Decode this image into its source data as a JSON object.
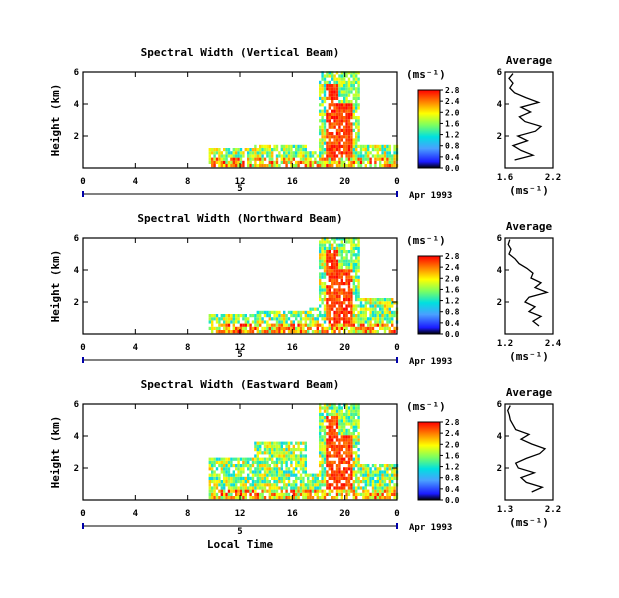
{
  "figure": {
    "local_time_label": "Local Time",
    "date_label": "Apr 1993",
    "day_label": "5",
    "average_title": "Average",
    "units_label": "(ms⁻¹)",
    "ylabel": "Height (km)"
  },
  "chart_data": [
    {
      "type": "heatmap",
      "title": "Spectral Width (Vertical Beam)",
      "xlabel": "Local Time",
      "ylabel": "Height (km)",
      "x_ticks": [
        "0",
        "4",
        "8",
        "12",
        "16",
        "20",
        "0"
      ],
      "xlim": [
        0,
        24
      ],
      "y_ticks": [
        "2",
        "4",
        "6"
      ],
      "ylim": [
        0,
        6
      ],
      "colorbar_label": "(ms⁻¹)",
      "colorbar_ticks": [
        "0.0",
        "0.4",
        "0.8",
        "1.2",
        "1.6",
        "2.0",
        "2.4",
        "2.8"
      ],
      "colorbar_range": [
        0,
        2.8
      ],
      "profile": {
        "title": "Average",
        "xlabel": "(ms⁻¹)",
        "x_ticks": [
          "1.6",
          "2.2"
        ],
        "xlim": [
          1.6,
          2.2
        ],
        "y_ticks": [
          "2",
          "4",
          "6"
        ],
        "heights": [
          0.5,
          0.8,
          1.1,
          1.4,
          1.7,
          2.0,
          2.3,
          2.6,
          2.9,
          3.2,
          3.5,
          3.8,
          4.1,
          4.4,
          4.7,
          5.0,
          5.3,
          5.6,
          5.9
        ],
        "values": [
          1.72,
          1.95,
          1.8,
          1.7,
          1.88,
          1.76,
          1.98,
          2.05,
          1.85,
          1.78,
          1.92,
          1.8,
          2.02,
          1.86,
          1.72,
          1.66,
          1.7,
          1.65,
          1.7
        ]
      }
    },
    {
      "type": "heatmap",
      "title": "Spectral Width (Northward Beam)",
      "xlabel": "Local Time",
      "ylabel": "Height (km)",
      "x_ticks": [
        "0",
        "4",
        "8",
        "12",
        "16",
        "20",
        "0"
      ],
      "xlim": [
        0,
        24
      ],
      "y_ticks": [
        "2",
        "4",
        "6"
      ],
      "ylim": [
        0,
        6
      ],
      "colorbar_label": "(ms⁻¹)",
      "colorbar_ticks": [
        "0.0",
        "0.4",
        "0.8",
        "1.2",
        "1.6",
        "2.0",
        "2.4",
        "2.8"
      ],
      "colorbar_range": [
        0,
        2.8
      ],
      "profile": {
        "title": "Average",
        "xlabel": "(ms⁻¹)",
        "x_ticks": [
          "1.2",
          "2.4"
        ],
        "xlim": [
          1.2,
          2.4
        ],
        "y_ticks": [
          "2",
          "4",
          "6"
        ],
        "heights": [
          0.5,
          0.8,
          1.1,
          1.4,
          1.7,
          2.0,
          2.3,
          2.6,
          2.9,
          3.2,
          3.5,
          3.8,
          4.1,
          4.4,
          4.7,
          5.0,
          5.3,
          5.6,
          5.9
        ],
        "values": [
          2.05,
          1.9,
          2.1,
          1.8,
          1.95,
          1.7,
          1.8,
          2.25,
          1.95,
          2.1,
          1.85,
          1.9,
          1.75,
          1.55,
          1.45,
          1.3,
          1.35,
          1.28,
          1.32
        ]
      }
    },
    {
      "type": "heatmap",
      "title": "Spectral Width (Eastward Beam)",
      "xlabel": "Local Time",
      "ylabel": "Height (km)",
      "x_ticks": [
        "0",
        "4",
        "8",
        "12",
        "16",
        "20",
        "0"
      ],
      "xlim": [
        0,
        24
      ],
      "y_ticks": [
        "2",
        "4",
        "6"
      ],
      "ylim": [
        0,
        6
      ],
      "colorbar_label": "(ms⁻¹)",
      "colorbar_ticks": [
        "0.0",
        "0.4",
        "0.8",
        "1.2",
        "1.6",
        "2.0",
        "2.4",
        "2.8"
      ],
      "colorbar_range": [
        0,
        2.8
      ],
      "profile": {
        "title": "Average",
        "xlabel": "(ms⁻¹)",
        "x_ticks": [
          "1.3",
          "2.2"
        ],
        "xlim": [
          1.3,
          2.2
        ],
        "y_ticks": [
          "2",
          "4",
          "6"
        ],
        "heights": [
          0.5,
          0.8,
          1.1,
          1.4,
          1.7,
          2.0,
          2.3,
          2.6,
          2.9,
          3.2,
          3.5,
          3.8,
          4.1,
          4.4,
          4.7,
          5.0,
          5.3,
          5.6,
          5.9
        ],
        "values": [
          1.8,
          2.0,
          1.7,
          1.6,
          1.85,
          1.55,
          1.5,
          1.7,
          1.95,
          2.05,
          1.8,
          1.6,
          1.75,
          1.5,
          1.45,
          1.4,
          1.38,
          1.35,
          1.4
        ]
      }
    }
  ]
}
